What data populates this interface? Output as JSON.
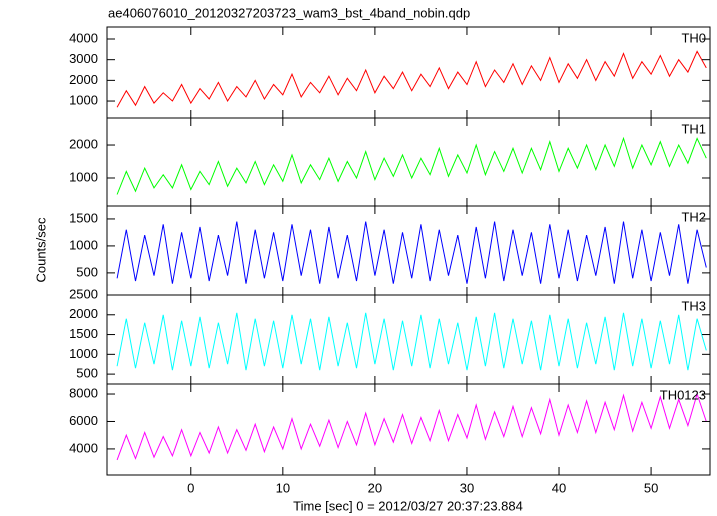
{
  "chart_data": {
    "type": "line",
    "title": "ae406076010_20120327203723_wam3_bst_4band_nobin.qdp",
    "xlabel": "Time [sec] 0 = 2012/03/27 20:37:23.884",
    "ylabel": "Counts/sec",
    "xlim": [
      -9.1,
      56.4
    ],
    "xticks": [
      0,
      10,
      20,
      30,
      40,
      50
    ],
    "x": [
      -8,
      -7,
      -6,
      -5,
      -4,
      -3,
      -2,
      -1,
      0,
      1,
      2,
      3,
      4,
      5,
      6,
      7,
      8,
      9,
      10,
      11,
      12,
      13,
      14,
      15,
      16,
      17,
      18,
      19,
      20,
      21,
      22,
      23,
      24,
      25,
      26,
      27,
      28,
      29,
      30,
      31,
      32,
      33,
      34,
      35,
      36,
      37,
      38,
      39,
      40,
      41,
      42,
      43,
      44,
      45,
      46,
      47,
      48,
      49,
      50,
      51,
      52,
      53,
      54,
      55,
      56
    ],
    "panels": [
      {
        "name": "TH0",
        "color": "#ff0000",
        "ylim": [
          180,
          4580
        ],
        "yticks": [
          1000,
          2000,
          3000,
          4000
        ],
        "values": [
          700,
          1500,
          800,
          1700,
          900,
          1400,
          1000,
          1800,
          900,
          1600,
          1100,
          1900,
          1000,
          1700,
          1200,
          2000,
          1100,
          1800,
          1300,
          2300,
          1200,
          1900,
          1400,
          2200,
          1300,
          2100,
          1500,
          2500,
          1400,
          2200,
          1600,
          2400,
          1500,
          2300,
          1700,
          2600,
          1600,
          2400,
          1800,
          2900,
          1700,
          2500,
          1900,
          2800,
          1800,
          2700,
          2000,
          3100,
          1900,
          2800,
          2100,
          3000,
          2000,
          2900,
          2200,
          3300,
          2100,
          2900,
          2300,
          3200,
          2200,
          3000,
          2400,
          3400,
          2600
        ]
      },
      {
        "name": "TH1",
        "color": "#00ff00",
        "ylim": [
          150,
          2820
        ],
        "yticks": [
          1000,
          2000
        ],
        "values": [
          500,
          1200,
          600,
          1300,
          700,
          1100,
          700,
          1400,
          650,
          1200,
          800,
          1500,
          750,
          1300,
          850,
          1500,
          800,
          1400,
          900,
          1700,
          850,
          1400,
          950,
          1600,
          900,
          1500,
          1000,
          1800,
          950,
          1600,
          1050,
          1700,
          1000,
          1600,
          1100,
          1900,
          1050,
          1700,
          1150,
          2000,
          1100,
          1800,
          1200,
          1900,
          1150,
          1900,
          1250,
          2100,
          1200,
          1900,
          1300,
          2000,
          1250,
          2000,
          1350,
          2200,
          1300,
          2000,
          1400,
          2100,
          1350,
          2000,
          1450,
          2200,
          1600
        ]
      },
      {
        "name": "TH2",
        "color": "#0000ff",
        "ylim": [
          90,
          1740
        ],
        "yticks": [
          500,
          1000,
          1500
        ],
        "values": [
          400,
          1300,
          350,
          1200,
          450,
          1400,
          300,
          1250,
          400,
          1350,
          350,
          1200,
          450,
          1450,
          300,
          1300,
          400,
          1250,
          350,
          1400,
          450,
          1300,
          300,
          1350,
          400,
          1200,
          350,
          1450,
          450,
          1300,
          300,
          1250,
          400,
          1400,
          350,
          1300,
          450,
          1200,
          300,
          1350,
          400,
          1450,
          350,
          1300,
          450,
          1250,
          300,
          1400,
          400,
          1300,
          350,
          1200,
          450,
          1350,
          300,
          1450,
          400,
          1300,
          350,
          1250,
          450,
          1400,
          300,
          1300,
          600
        ]
      },
      {
        "name": "TH3",
        "color": "#00ffff",
        "ylim": [
          250,
          2500
        ],
        "yticks": [
          500,
          1000,
          1500,
          2000,
          2500
        ],
        "values": [
          700,
          1900,
          650,
          1800,
          750,
          2000,
          600,
          1850,
          700,
          1950,
          650,
          1800,
          750,
          2050,
          600,
          1900,
          700,
          1850,
          650,
          2000,
          750,
          1900,
          600,
          1950,
          700,
          1800,
          650,
          2050,
          750,
          1900,
          600,
          1850,
          700,
          2000,
          650,
          1900,
          750,
          1800,
          600,
          1950,
          700,
          2050,
          650,
          1900,
          750,
          1850,
          600,
          2000,
          700,
          1900,
          650,
          1800,
          750,
          1950,
          600,
          2050,
          700,
          1900,
          650,
          1850,
          750,
          2000,
          600,
          1900,
          1100
        ]
      },
      {
        "name": "TH0123",
        "color": "#ff00ff",
        "ylim": [
          2100,
          8730
        ],
        "yticks": [
          4000,
          6000,
          8000
        ],
        "values": [
          3200,
          5000,
          3300,
          5200,
          3400,
          4900,
          3500,
          5400,
          3500,
          5200,
          3700,
          5600,
          3700,
          5400,
          3900,
          5800,
          3800,
          5600,
          4000,
          6200,
          4000,
          5800,
          4200,
          6100,
          4100,
          6000,
          4300,
          6600,
          4300,
          6200,
          4500,
          6500,
          4400,
          6300,
          4600,
          6800,
          4600,
          6500,
          4800,
          7200,
          4700,
          6700,
          4900,
          7100,
          4900,
          7000,
          5100,
          7600,
          5000,
          7200,
          5200,
          7500,
          5200,
          7400,
          5400,
          7900,
          5300,
          7400,
          5500,
          7800,
          5500,
          7600,
          5700,
          8000,
          6000
        ]
      }
    ]
  }
}
